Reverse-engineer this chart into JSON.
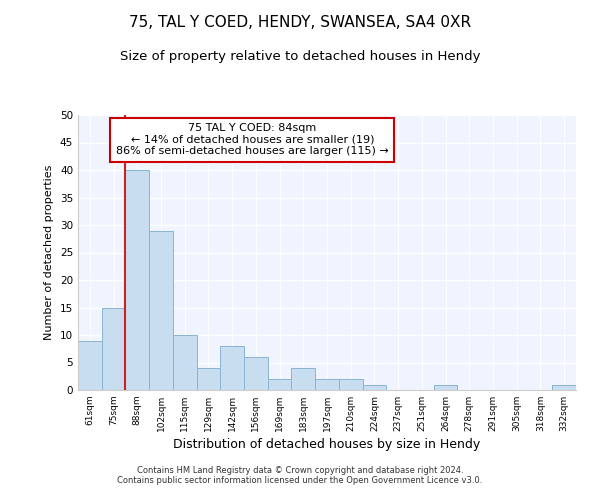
{
  "title": "75, TAL Y COED, HENDY, SWANSEA, SA4 0XR",
  "subtitle": "Size of property relative to detached houses in Hendy",
  "xlabel": "Distribution of detached houses by size in Hendy",
  "ylabel": "Number of detached properties",
  "categories": [
    "61sqm",
    "75sqm",
    "88sqm",
    "102sqm",
    "115sqm",
    "129sqm",
    "142sqm",
    "156sqm",
    "169sqm",
    "183sqm",
    "197sqm",
    "210sqm",
    "224sqm",
    "237sqm",
    "251sqm",
    "264sqm",
    "278sqm",
    "291sqm",
    "305sqm",
    "318sqm",
    "332sqm"
  ],
  "values": [
    9,
    15,
    40,
    29,
    10,
    4,
    8,
    6,
    2,
    4,
    2,
    2,
    1,
    0,
    0,
    1,
    0,
    0,
    0,
    0,
    1
  ],
  "bar_color": "#c8ddf0",
  "bar_edge_color": "#8ab4d4",
  "property_line_index": 2,
  "property_line_label": "75 TAL Y COED: 84sqm",
  "annotation_line1": "← 14% of detached houses are smaller (19)",
  "annotation_line2": "86% of semi-detached houses are larger (115) →",
  "annotation_box_color": "#cc0000",
  "ylim": [
    0,
    50
  ],
  "yticks": [
    0,
    5,
    10,
    15,
    20,
    25,
    30,
    35,
    40,
    45,
    50
  ],
  "bg_color": "#ffffff",
  "plot_bg_color": "#f0f4ff",
  "footer_line1": "Contains HM Land Registry data © Crown copyright and database right 2024.",
  "footer_line2": "Contains public sector information licensed under the Open Government Licence v3.0.",
  "grid_color": "#ffffff",
  "title_fontsize": 11,
  "subtitle_fontsize": 9.5,
  "xlabel_fontsize": 9,
  "ylabel_fontsize": 8
}
